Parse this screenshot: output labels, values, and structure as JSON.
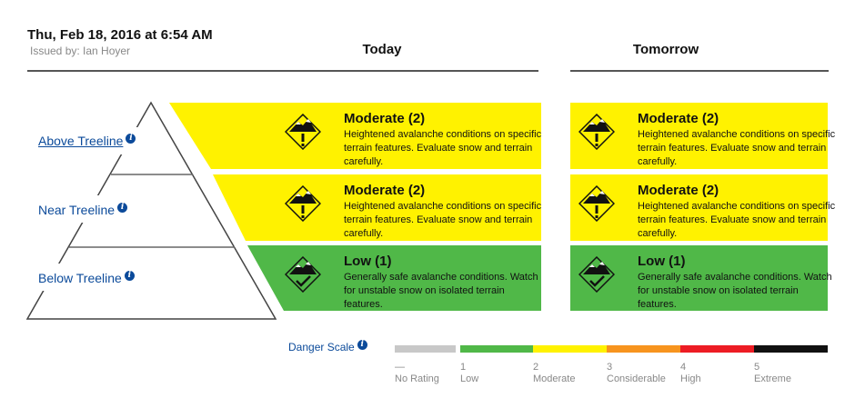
{
  "header": {
    "date": "Thu, Feb 18, 2016 at 6:54 AM",
    "issued_by": "Issued by: Ian Hoyer"
  },
  "columns": {
    "today": "Today",
    "tomorrow": "Tomorrow"
  },
  "elevations": [
    {
      "label": "Above Treeline",
      "info": "i"
    },
    {
      "label": "Near Treeline",
      "info": "i"
    },
    {
      "label": "Below Treeline",
      "info": "i"
    }
  ],
  "today": [
    {
      "title": "Moderate (2)",
      "desc": "Heightened avalanche conditions on specific terrain features. Evaluate snow and terrain carefully.",
      "color": "#fff200",
      "icon": "moderate-danger-icon"
    },
    {
      "title": "Moderate (2)",
      "desc": "Heightened avalanche conditions on specific terrain features. Evaluate snow and terrain carefully.",
      "color": "#fff200",
      "icon": "moderate-danger-icon"
    },
    {
      "title": "Low (1)",
      "desc": "Generally safe avalanche conditions. Watch for unstable snow on isolated terrain features.",
      "color": "#50b848",
      "icon": "low-danger-icon"
    }
  ],
  "tomorrow": [
    {
      "title": "Moderate (2)",
      "desc": "Heightened avalanche conditions on specific terrain features. Evaluate snow and terrain carefully.",
      "color": "#fff200",
      "icon": "moderate-danger-icon"
    },
    {
      "title": "Moderate (2)",
      "desc": "Heightened avalanche conditions on specific terrain features. Evaluate snow and terrain carefully.",
      "color": "#fff200",
      "icon": "moderate-danger-icon"
    },
    {
      "title": "Low (1)",
      "desc": "Generally safe avalanche conditions. Watch for unstable snow on isolated terrain features.",
      "color": "#50b848",
      "icon": "low-danger-icon"
    }
  ],
  "danger_scale": {
    "label": "Danger Scale",
    "info": "i",
    "levels": [
      {
        "num": "—",
        "name": "No Rating",
        "color": "#c8c8c8"
      },
      {
        "num": "1",
        "name": "Low",
        "color": "#50b848"
      },
      {
        "num": "2",
        "name": "Moderate",
        "color": "#fff200"
      },
      {
        "num": "3",
        "name": "Considerable",
        "color": "#f7941e"
      },
      {
        "num": "4",
        "name": "High",
        "color": "#ed1c24"
      },
      {
        "num": "5",
        "name": "Extreme",
        "color": "#111111"
      }
    ]
  }
}
